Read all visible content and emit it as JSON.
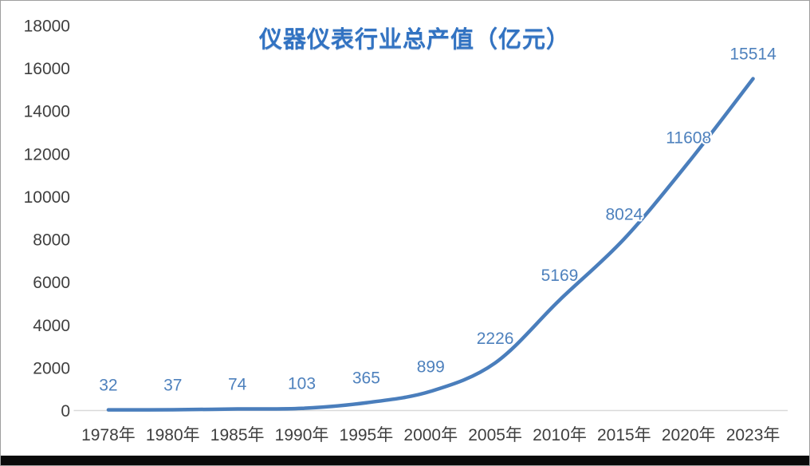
{
  "chart_data": {
    "type": "line",
    "title": "仪器仪表行业总产值（亿元）",
    "categories": [
      "1978年",
      "1980年",
      "1985年",
      "1990年",
      "1995年",
      "2000年",
      "2005年",
      "2010年",
      "2015年",
      "2020年",
      "2023年"
    ],
    "series": [
      {
        "name": "总产值",
        "values": [
          32,
          37,
          74,
          103,
          365,
          899,
          2226,
          5169,
          8024,
          11608,
          15514
        ]
      }
    ],
    "data_labels": [
      "32",
      "37",
      "74",
      "103",
      "365",
      "899",
      "2226",
      "5169",
      "8024",
      "11608",
      "15514"
    ],
    "ylim": [
      0,
      18000
    ],
    "ytick_step": 2000,
    "ytick_labels": [
      "0",
      "2000",
      "4000",
      "6000",
      "8000",
      "10000",
      "12000",
      "14000",
      "16000",
      "18000"
    ],
    "grid": false,
    "legend_position": "none",
    "line_style": "smooth",
    "colors": {
      "line": "#4a7ebc",
      "data_label": "#4e81bd",
      "axis_text": "#3f3f3f",
      "axis_line": "#d9d9d9",
      "title": "#3273c2"
    }
  }
}
